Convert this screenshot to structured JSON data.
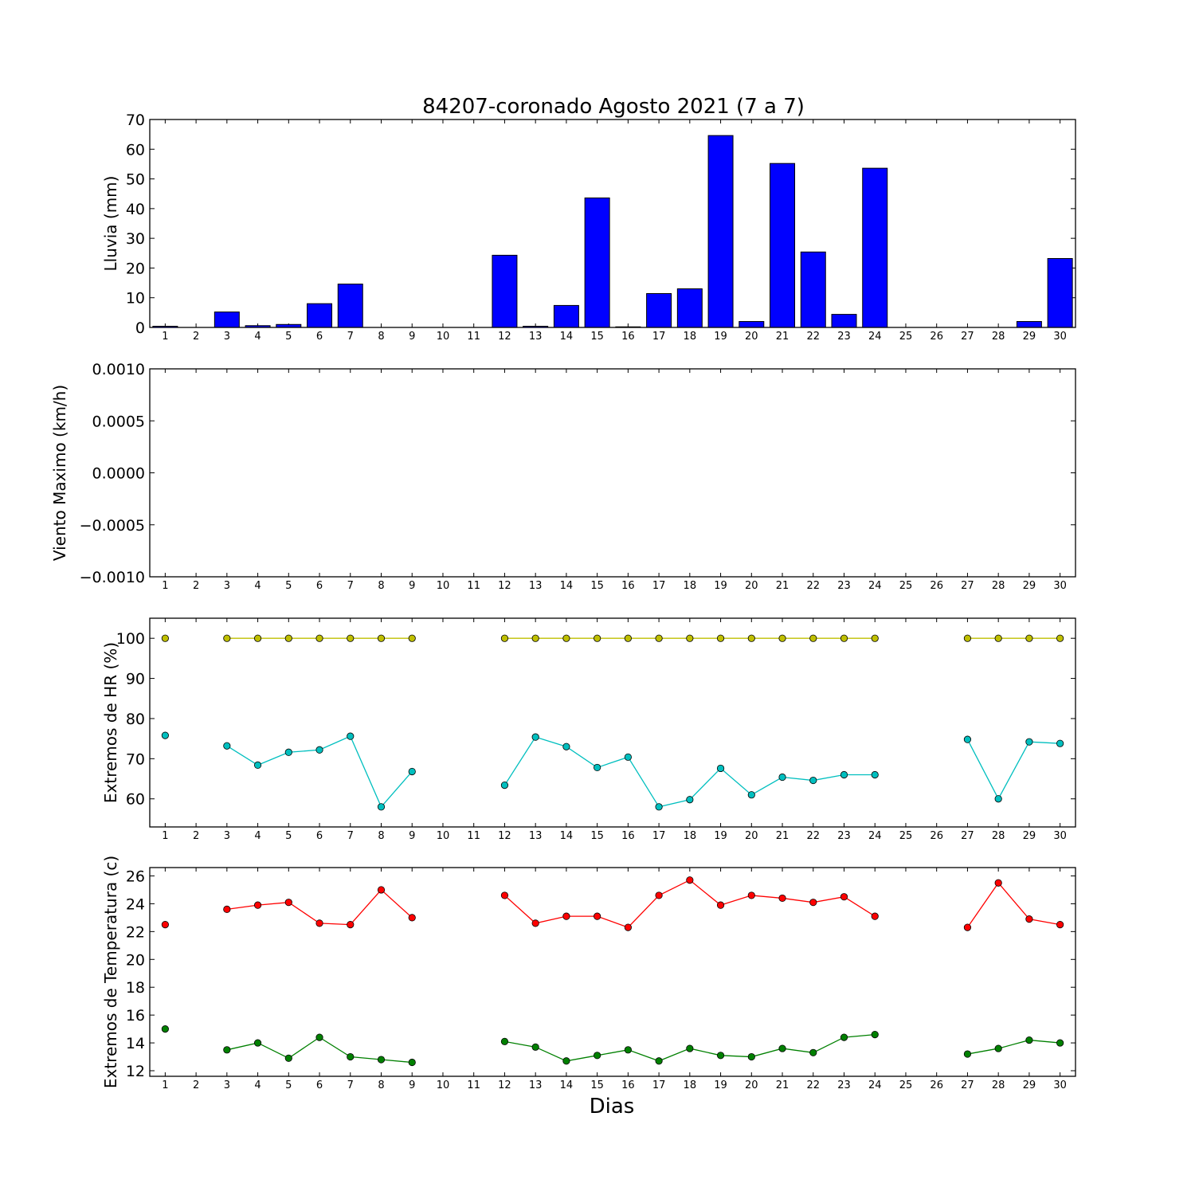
{
  "chart_data": [
    {
      "type": "bar",
      "title": "84207-coronado Agosto 2021  (7 a 7)",
      "ylabel": "Lluvia (mm)",
      "xlabel": "",
      "ylim": [
        0,
        70
      ],
      "yticks": [
        "0",
        "10",
        "20",
        "30",
        "40",
        "50",
        "60",
        "70"
      ],
      "x": [
        1,
        2,
        3,
        4,
        5,
        6,
        7,
        8,
        9,
        10,
        11,
        12,
        13,
        14,
        15,
        16,
        17,
        18,
        19,
        20,
        21,
        22,
        23,
        24,
        25,
        26,
        27,
        28,
        29,
        30
      ],
      "grid": false,
      "series": [
        {
          "color": "#0000ff",
          "values": [
            0.4,
            0,
            5.2,
            0.6,
            1.0,
            8.0,
            14.6,
            0,
            0,
            0,
            0,
            24.3,
            0.4,
            7.4,
            43.6,
            0.2,
            11.4,
            13.0,
            64.6,
            2.0,
            55.2,
            25.4,
            4.4,
            53.6,
            0,
            0,
            0,
            0,
            2.0,
            23.2
          ]
        }
      ]
    },
    {
      "type": "line",
      "ylabel": "Viento Maximo (km/h)",
      "xlabel": "",
      "ylim": [
        -0.001,
        0.001
      ],
      "yticks": [
        "−0.0010",
        "−0.0005",
        "0.0000",
        "0.0005",
        "0.0010"
      ],
      "x": [
        1,
        2,
        3,
        4,
        5,
        6,
        7,
        8,
        9,
        10,
        11,
        12,
        13,
        14,
        15,
        16,
        17,
        18,
        19,
        20,
        21,
        22,
        23,
        24,
        25,
        26,
        27,
        28,
        29,
        30
      ],
      "grid": false,
      "series": []
    },
    {
      "type": "line",
      "ylabel": "Extremos de HR (%)",
      "xlabel": "",
      "ylim": [
        53,
        105
      ],
      "yticks": [
        "60",
        "70",
        "80",
        "90",
        "100"
      ],
      "x": [
        1,
        2,
        3,
        4,
        5,
        6,
        7,
        8,
        9,
        10,
        11,
        12,
        13,
        14,
        15,
        16,
        17,
        18,
        19,
        20,
        21,
        22,
        23,
        24,
        25,
        26,
        27,
        28,
        29,
        30
      ],
      "grid": false,
      "series": [
        {
          "color": "#bfbf00",
          "values": [
            100,
            null,
            100,
            100,
            100,
            100,
            100,
            100,
            100,
            null,
            null,
            100,
            100,
            100,
            100,
            100,
            100,
            100,
            100,
            100,
            100,
            100,
            100,
            100,
            null,
            null,
            100,
            100,
            100,
            100
          ]
        },
        {
          "color": "#00bfbf",
          "values": [
            75.8,
            null,
            73.2,
            68.4,
            71.6,
            72.2,
            75.6,
            58.0,
            66.8,
            null,
            null,
            63.4,
            75.4,
            73.0,
            67.8,
            70.4,
            58.0,
            59.8,
            67.6,
            61.0,
            65.4,
            64.6,
            66.0,
            66.0,
            null,
            null,
            74.8,
            60.0,
            74.2,
            73.8
          ]
        }
      ]
    },
    {
      "type": "line",
      "ylabel": "Extremos de Temperatura (c)",
      "xlabel": "Dias",
      "ylim": [
        11.6,
        26.6
      ],
      "yticks": [
        "12",
        "14",
        "16",
        "18",
        "20",
        "22",
        "24",
        "26"
      ],
      "x": [
        1,
        2,
        3,
        4,
        5,
        6,
        7,
        8,
        9,
        10,
        11,
        12,
        13,
        14,
        15,
        16,
        17,
        18,
        19,
        20,
        21,
        22,
        23,
        24,
        25,
        26,
        27,
        28,
        29,
        30
      ],
      "grid": false,
      "series": [
        {
          "color": "#ff0000",
          "values": [
            22.5,
            null,
            23.6,
            23.9,
            24.1,
            22.6,
            22.5,
            25.0,
            23.0,
            null,
            null,
            24.6,
            22.6,
            23.1,
            23.1,
            22.3,
            24.6,
            25.7,
            23.9,
            24.6,
            24.4,
            24.1,
            24.5,
            23.1,
            null,
            null,
            22.3,
            25.5,
            22.9,
            22.5
          ]
        },
        {
          "color": "#008000",
          "values": [
            15.0,
            null,
            13.5,
            14.0,
            12.9,
            14.4,
            13.0,
            12.8,
            12.6,
            null,
            null,
            14.1,
            13.7,
            12.7,
            13.1,
            13.5,
            12.7,
            13.6,
            13.1,
            13.0,
            13.6,
            13.3,
            14.4,
            14.6,
            null,
            null,
            13.2,
            13.6,
            14.2,
            14.0
          ]
        }
      ]
    }
  ]
}
